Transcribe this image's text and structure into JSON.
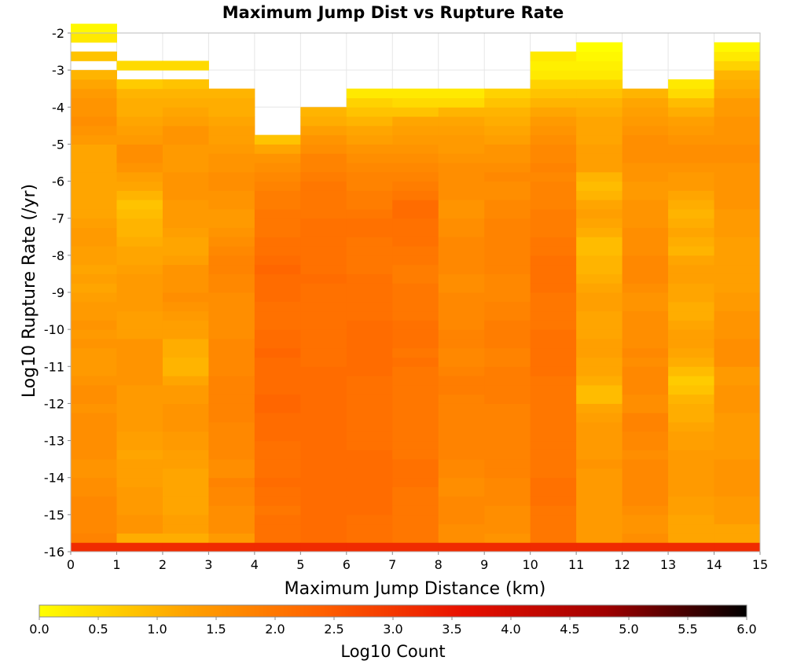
{
  "chart_data": {
    "type": "heatmap",
    "title": "Maximum Jump Dist vs Rupture Rate",
    "xlabel": "Maximum Jump Distance (km)",
    "ylabel": "Log10 Rupture Rate (/yr)",
    "colorbar_label": "Log10 Count",
    "xlim": [
      0,
      15
    ],
    "ylim": [
      -16,
      -2
    ],
    "x_ticks": [
      "0",
      "1",
      "2",
      "3",
      "4",
      "5",
      "6",
      "7",
      "8",
      "9",
      "10",
      "11",
      "12",
      "13",
      "14",
      "15"
    ],
    "y_ticks": [
      "-2",
      "-3",
      "-4",
      "-5",
      "-6",
      "-7",
      "-8",
      "-9",
      "-10",
      "-11",
      "-12",
      "-13",
      "-14",
      "-15",
      "-16"
    ],
    "colorbar_range": [
      0,
      6
    ],
    "colorbar_ticks": [
      "0.0",
      "0.5",
      "1.0",
      "1.5",
      "2.0",
      "2.5",
      "3.0",
      "3.5",
      "4.0",
      "4.5",
      "5.0",
      "5.5",
      "6.0"
    ],
    "colormap": [
      "#ffff00",
      "#ffa500",
      "#ff6000",
      "#e81000",
      "#a00000",
      "#000000"
    ],
    "grid": true,
    "bin_x_edges": [
      0,
      1,
      2,
      3,
      4,
      5,
      6,
      7,
      8,
      9,
      10,
      11,
      12,
      13,
      14,
      15
    ],
    "bin_y_start": -16,
    "bin_y_size": 0.25,
    "column_notes": "values[c][r] = log10 count for x-bin c, y-bin r (r=0 is -16.0 to -15.75); null = empty",
    "values": [
      [
        3.2,
        1.8,
        1.7,
        1.7,
        1.7,
        1.7,
        1.6,
        1.6,
        1.5,
        1.5,
        1.6,
        1.6,
        1.6,
        1.6,
        1.6,
        1.5,
        1.6,
        1.6,
        1.5,
        1.4,
        1.4,
        1.4,
        1.5,
        1.4,
        1.5,
        1.4,
        1.4,
        1.3,
        1.2,
        1.3,
        1.2,
        1.3,
        1.3,
        1.4,
        1.4,
        1.3,
        1.2,
        1.2,
        1.2,
        1.2,
        1.2,
        1.2,
        1.2,
        1.2,
        1.4,
        1.5,
        1.6,
        1.5,
        1.5,
        1.4,
        1.2,
        1.0,
        null,
        0.8,
        null,
        0.3,
        0.1
      ],
      [
        3.2,
        1.1,
        1.5,
        1.5,
        1.4,
        1.4,
        1.4,
        1.3,
        1.3,
        1.3,
        1.2,
        1.3,
        1.3,
        1.4,
        1.4,
        1.4,
        1.4,
        1.4,
        1.5,
        1.5,
        1.5,
        1.5,
        1.5,
        1.3,
        1.3,
        1.3,
        1.4,
        1.4,
        1.4,
        1.4,
        1.3,
        1.2,
        1.2,
        1.1,
        1.0,
        1.0,
        0.9,
        0.8,
        1.0,
        1.2,
        1.3,
        1.5,
        1.6,
        1.6,
        1.4,
        1.3,
        1.2,
        1.1,
        1.1,
        1.0,
        0.7,
        null,
        0.5,
        null,
        null,
        null,
        null
      ],
      [
        3.2,
        1.1,
        1.3,
        1.3,
        1.2,
        1.2,
        1.2,
        1.2,
        1.2,
        1.3,
        1.3,
        1.4,
        1.4,
        1.5,
        1.5,
        1.5,
        1.4,
        1.4,
        1.2,
        1.0,
        1.0,
        1.1,
        1.1,
        1.3,
        1.3,
        1.4,
        1.5,
        1.6,
        1.5,
        1.5,
        1.5,
        1.3,
        1.2,
        1.2,
        1.3,
        1.4,
        1.4,
        1.4,
        1.5,
        1.5,
        1.5,
        1.4,
        1.4,
        1.4,
        1.5,
        1.5,
        1.3,
        1.2,
        1.1,
        1.0,
        0.8,
        null,
        0.5,
        null,
        null,
        null,
        null
      ],
      [
        3.2,
        1.4,
        1.6,
        1.6,
        1.6,
        1.7,
        1.7,
        1.8,
        1.6,
        1.6,
        1.7,
        1.7,
        1.7,
        1.7,
        1.8,
        1.8,
        1.8,
        1.8,
        1.8,
        1.7,
        1.7,
        1.7,
        1.7,
        1.6,
        1.6,
        1.6,
        1.6,
        1.6,
        1.7,
        1.7,
        1.8,
        1.8,
        1.7,
        1.6,
        1.5,
        1.4,
        1.4,
        1.5,
        1.5,
        1.6,
        1.6,
        1.5,
        1.5,
        1.4,
        1.3,
        1.3,
        1.2,
        1.1,
        1.1,
        1.0,
        null,
        null,
        null,
        null,
        null,
        null,
        null
      ],
      [
        3.2,
        2.1,
        2.1,
        2.1,
        2.0,
        2.1,
        2.1,
        2.2,
        2.1,
        2.1,
        2.1,
        2.1,
        2.2,
        2.2,
        2.2,
        2.3,
        2.3,
        2.2,
        2.2,
        2.2,
        2.2,
        2.3,
        2.2,
        2.2,
        2.1,
        2.1,
        2.1,
        2.2,
        2.2,
        2.2,
        2.3,
        2.2,
        2.1,
        2.1,
        2.0,
        2.0,
        2.0,
        1.9,
        1.9,
        1.8,
        1.7,
        1.6,
        1.5,
        1.2,
        0.8,
        null,
        null,
        null,
        null,
        null,
        null,
        null,
        null,
        null,
        null,
        null,
        null
      ],
      [
        3.2,
        2.2,
        2.2,
        2.2,
        2.2,
        2.2,
        2.2,
        2.2,
        2.2,
        2.2,
        2.2,
        2.2,
        2.2,
        2.2,
        2.2,
        2.2,
        2.2,
        2.2,
        2.2,
        2.2,
        2.1,
        2.1,
        2.1,
        2.1,
        2.1,
        2.1,
        2.1,
        2.1,
        2.1,
        2.2,
        2.1,
        2.1,
        2.1,
        2.1,
        2.1,
        2.1,
        2.0,
        2.0,
        2.0,
        2.0,
        1.9,
        1.8,
        1.8,
        1.6,
        1.5,
        1.3,
        1.1,
        1.0,
        null,
        null,
        null,
        null,
        null,
        null,
        null,
        null,
        null
      ],
      [
        3.2,
        2.1,
        2.1,
        2.1,
        2.2,
        2.2,
        2.2,
        2.2,
        2.2,
        2.2,
        2.2,
        2.1,
        2.1,
        2.1,
        2.1,
        2.1,
        2.1,
        2.1,
        2.1,
        2.2,
        2.2,
        2.2,
        2.2,
        2.2,
        2.2,
        2.1,
        2.1,
        2.1,
        2.1,
        2.1,
        2.0,
        2.0,
        2.0,
        2.0,
        2.1,
        2.1,
        2.0,
        1.9,
        1.9,
        1.8,
        1.8,
        1.7,
        1.6,
        1.5,
        1.3,
        1.2,
        1.0,
        0.8,
        0.6,
        0.3,
        null,
        null,
        null,
        null,
        null,
        null,
        null
      ],
      [
        3.2,
        2.0,
        2.0,
        2.0,
        2.0,
        2.0,
        2.0,
        2.1,
        2.1,
        2.1,
        2.0,
        2.0,
        2.0,
        2.0,
        2.0,
        2.0,
        2.0,
        2.0,
        2.0,
        2.0,
        2.1,
        2.0,
        2.1,
        2.1,
        2.1,
        2.0,
        2.0,
        2.0,
        2.0,
        1.9,
        1.9,
        2.0,
        2.0,
        2.1,
        2.1,
        2.1,
        2.2,
        2.2,
        2.0,
        1.9,
        1.8,
        1.7,
        1.6,
        1.5,
        1.4,
        1.3,
        1.2,
        0.8,
        0.5,
        0.3,
        null,
        null,
        null,
        null,
        null,
        null,
        null
      ],
      [
        3.2,
        1.6,
        1.6,
        1.7,
        1.7,
        1.7,
        1.6,
        1.6,
        1.7,
        1.7,
        1.8,
        1.8,
        1.8,
        1.8,
        1.8,
        1.8,
        1.8,
        1.9,
        1.9,
        1.8,
        1.7,
        1.7,
        1.8,
        1.8,
        1.7,
        1.7,
        1.7,
        1.7,
        1.6,
        1.6,
        1.7,
        1.7,
        1.7,
        1.7,
        1.6,
        1.6,
        1.5,
        1.5,
        1.6,
        1.6,
        1.6,
        1.6,
        1.5,
        1.4,
        1.4,
        1.3,
        1.2,
        1.0,
        0.5,
        0.3,
        null,
        null,
        null,
        null,
        null,
        null,
        null
      ],
      [
        3.2,
        1.5,
        1.6,
        1.6,
        1.6,
        1.7,
        1.7,
        1.7,
        1.8,
        1.8,
        1.8,
        1.8,
        1.8,
        1.8,
        1.8,
        1.8,
        1.9,
        1.9,
        1.9,
        1.9,
        1.8,
        1.8,
        1.9,
        1.9,
        1.9,
        1.8,
        1.8,
        1.7,
        1.7,
        1.7,
        1.8,
        1.8,
        1.8,
        1.8,
        1.8,
        1.8,
        1.7,
        1.7,
        1.6,
        1.6,
        1.7,
        1.6,
        1.5,
        1.5,
        1.3,
        1.2,
        1.1,
        1.0,
        0.8,
        0.6,
        null,
        null,
        null,
        null,
        null,
        null,
        null
      ],
      [
        3.2,
        2.0,
        2.0,
        2.0,
        2.0,
        2.1,
        2.1,
        2.1,
        2.0,
        2.0,
        2.0,
        2.0,
        2.0,
        2.0,
        2.0,
        2.0,
        2.0,
        2.0,
        2.0,
        2.1,
        2.1,
        2.1,
        2.1,
        2.1,
        2.0,
        2.0,
        2.0,
        2.0,
        2.1,
        2.1,
        2.1,
        2.1,
        2.0,
        2.0,
        1.9,
        1.9,
        1.9,
        1.8,
        1.8,
        1.8,
        1.7,
        1.8,
        1.7,
        1.7,
        1.6,
        1.5,
        1.4,
        1.2,
        1.0,
        0.8,
        0.6,
        0.3,
        0.2,
        0.3,
        null,
        null,
        null
      ],
      [
        3.2,
        1.4,
        1.4,
        1.4,
        1.4,
        1.4,
        1.4,
        1.4,
        1.4,
        1.5,
        1.4,
        1.4,
        1.4,
        1.4,
        1.3,
        1.2,
        0.9,
        0.9,
        1.1,
        1.2,
        1.2,
        1.3,
        1.3,
        1.2,
        1.2,
        1.2,
        1.3,
        1.3,
        1.2,
        1.1,
        1.0,
        1.0,
        0.9,
        0.9,
        1.1,
        1.2,
        1.3,
        1.2,
        1.0,
        0.9,
        1.0,
        1.3,
        1.3,
        1.3,
        1.2,
        1.2,
        1.2,
        1.1,
        1.0,
        0.8,
        0.6,
        0.3,
        0.2,
        0.1,
        0.0,
        null,
        null
      ],
      [
        3.2,
        1.6,
        1.5,
        1.5,
        1.6,
        1.7,
        1.7,
        1.7,
        1.7,
        1.7,
        1.6,
        1.7,
        1.7,
        1.8,
        1.8,
        1.6,
        1.6,
        1.7,
        1.7,
        1.7,
        1.6,
        1.7,
        1.6,
        1.6,
        1.6,
        1.6,
        1.5,
        1.5,
        1.6,
        1.7,
        1.7,
        1.7,
        1.6,
        1.6,
        1.6,
        1.5,
        1.5,
        1.5,
        1.4,
        1.4,
        1.5,
        1.5,
        1.6,
        1.6,
        1.6,
        1.5,
        1.4,
        1.3,
        1.2,
        1.0,
        null,
        null,
        null,
        null,
        null,
        null,
        null
      ],
      [
        3.2,
        1.2,
        1.2,
        1.2,
        1.3,
        1.3,
        1.4,
        1.4,
        1.4,
        1.4,
        1.4,
        1.3,
        1.3,
        1.2,
        1.1,
        1.1,
        1.0,
        0.8,
        0.7,
        0.9,
        1.1,
        1.2,
        1.3,
        1.3,
        1.2,
        1.1,
        1.1,
        1.2,
        1.2,
        1.3,
        1.3,
        1.2,
        1.0,
        1.1,
        1.2,
        1.1,
        1.0,
        1.1,
        1.2,
        1.4,
        1.4,
        1.5,
        1.6,
        1.6,
        1.5,
        1.4,
        1.3,
        1.1,
        0.9,
        0.5,
        0.3,
        null,
        null,
        null,
        null,
        null,
        null
      ],
      [
        3.2,
        1.2,
        1.2,
        1.4,
        1.4,
        1.4,
        1.5,
        1.5,
        1.5,
        1.5,
        1.4,
        1.4,
        1.4,
        1.4,
        1.4,
        1.5,
        1.5,
        1.5,
        1.4,
        1.4,
        1.6,
        1.6,
        1.6,
        1.5,
        1.5,
        1.5,
        1.4,
        1.4,
        1.3,
        1.3,
        1.3,
        1.3,
        1.3,
        1.3,
        1.4,
        1.4,
        1.4,
        1.5,
        1.5,
        1.5,
        1.5,
        1.5,
        1.6,
        1.6,
        1.5,
        1.5,
        1.5,
        1.4,
        1.4,
        1.2,
        1.1,
        1.0,
        0.6,
        0.3,
        0.1,
        null,
        null
      ]
    ]
  }
}
